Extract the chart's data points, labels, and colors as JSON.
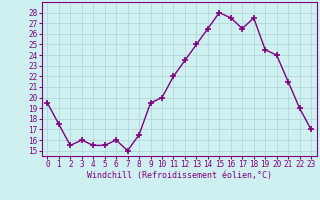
{
  "x": [
    0,
    1,
    2,
    3,
    4,
    5,
    6,
    7,
    8,
    9,
    10,
    11,
    12,
    13,
    14,
    15,
    16,
    17,
    18,
    19,
    20,
    21,
    22,
    23
  ],
  "y": [
    19.5,
    17.5,
    15.5,
    16.0,
    15.5,
    15.5,
    16.0,
    15.0,
    16.5,
    19.5,
    20.0,
    22.0,
    23.5,
    25.0,
    26.5,
    28.0,
    27.5,
    26.5,
    27.5,
    24.5,
    24.0,
    21.5,
    19.0,
    17.0
  ],
  "line_color": "#800080",
  "marker": "+",
  "marker_size": 4,
  "bg_color": "#cff0f0",
  "grid_color": "#b0d8d8",
  "xlabel": "Windchill (Refroidissement éolien,°C)",
  "ylim": [
    14.5,
    29.0
  ],
  "xlim": [
    -0.5,
    23.5
  ],
  "yticks": [
    15,
    16,
    17,
    18,
    19,
    20,
    21,
    22,
    23,
    24,
    25,
    26,
    27,
    28
  ],
  "xticks": [
    0,
    1,
    2,
    3,
    4,
    5,
    6,
    7,
    8,
    9,
    10,
    11,
    12,
    13,
    14,
    15,
    16,
    17,
    18,
    19,
    20,
    21,
    22,
    23
  ],
  "tick_fontsize": 5.5,
  "xlabel_fontsize": 6.0
}
